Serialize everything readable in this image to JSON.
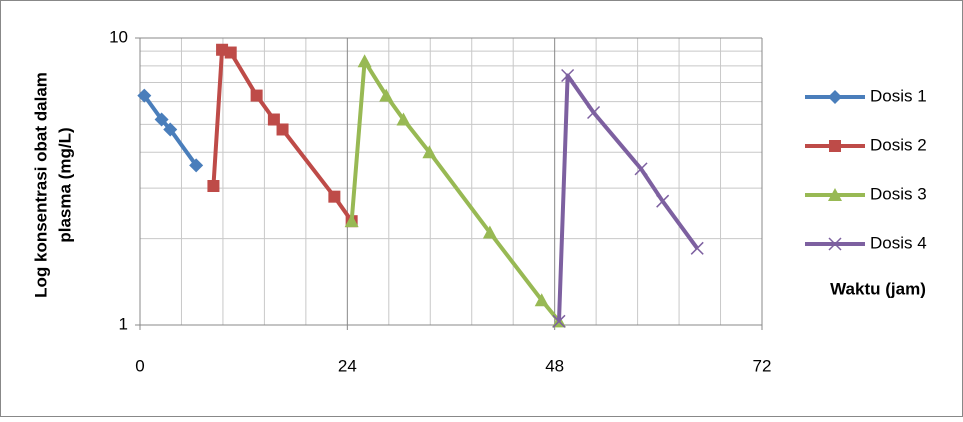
{
  "chart_data": {
    "type": "line",
    "log_y": true,
    "grid": true,
    "legend_position": "right",
    "y_label": [
      "Log konsentrasi obat dalam",
      "plasma (mg/L)"
    ],
    "x_label": "Waktu (jam)",
    "xlim": [
      0,
      72
    ],
    "xticks": [
      0,
      24,
      48,
      72
    ],
    "ylim": [
      1,
      10
    ],
    "yticks": [
      1,
      10
    ],
    "series": [
      {
        "name": "Dosis 1",
        "color": "#4a7ebb",
        "marker": "diamond",
        "x": [
          0.5,
          2.5,
          3.5,
          6.5
        ],
        "values": [
          6.3,
          5.2,
          4.8,
          3.6
        ]
      },
      {
        "name": "Dosis 2",
        "color": "#be4b48",
        "marker": "square",
        "x": [
          8.5,
          9.5,
          10.5,
          13.5,
          15.5,
          16.5,
          22.5,
          24.5
        ],
        "values": [
          3.05,
          9.1,
          8.9,
          6.3,
          5.2,
          4.8,
          2.8,
          2.3
        ]
      },
      {
        "name": "Dosis 3",
        "color": "#98b954",
        "marker": "triangle",
        "x": [
          24.5,
          26,
          28.5,
          30.5,
          33.5,
          40.5,
          46.5,
          48.5
        ],
        "values": [
          2.3,
          8.3,
          6.3,
          5.2,
          4.0,
          2.1,
          1.22,
          1.03
        ]
      },
      {
        "name": "Dosis 4",
        "color": "#7d60a0",
        "marker": "x",
        "x": [
          48.5,
          49.5,
          52.5,
          58,
          60.5,
          64.5
        ],
        "values": [
          1.03,
          7.4,
          5.5,
          3.5,
          2.7,
          1.85
        ]
      }
    ]
  }
}
